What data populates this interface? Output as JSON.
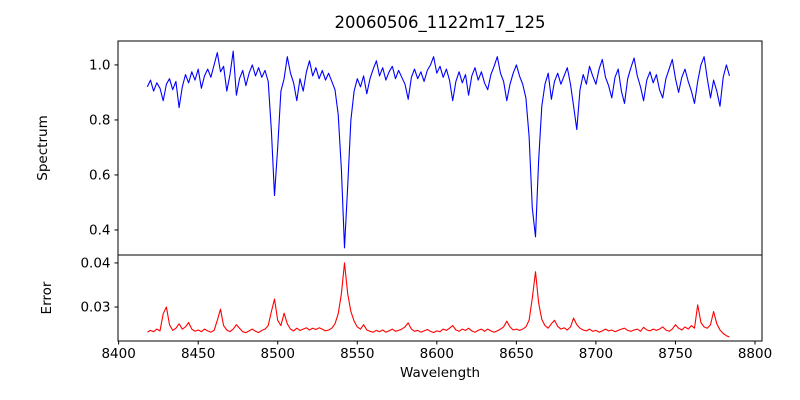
{
  "figure": {
    "title": "20060506_1122m17_125",
    "background_color": "#ffffff",
    "spine_color": "#000000"
  },
  "chart_data": {
    "type": "line",
    "title": "20060506_1122m17_125",
    "xlabel": "Wavelength",
    "legend": "none",
    "grid": false,
    "layout": "two stacked panels sharing x-axis, spectrum on top, error below",
    "xlim": [
      8399.6,
      8804.4
    ],
    "xticks": [
      8400,
      8450,
      8500,
      8550,
      8600,
      8650,
      8700,
      8750,
      8800
    ],
    "xtick_labels": [
      "8400",
      "8450",
      "8500",
      "8550",
      "8600",
      "8650",
      "8700",
      "8750",
      "8800"
    ],
    "panels": [
      {
        "name": "spectrum",
        "ylabel": "Spectrum",
        "color": "#0000ff",
        "ylim": [
          0.309,
          1.087
        ],
        "yticks": [
          0.4,
          0.6,
          0.8,
          1.0
        ],
        "ytick_labels": [
          "0.4",
          "0.6",
          "0.8",
          "1.0"
        ],
        "features": "noisy stellar continuum near 0.95-1.0 with Ca II triplet absorption lines at 8498 (depth 0.52), 8542 (depth 0.34), 8662 (depth 0.38) and weaker line at 8688 (0.77)",
        "x_start": 8418,
        "x_step": 2,
        "values": [
          0.92,
          0.945,
          0.905,
          0.935,
          0.915,
          0.87,
          0.93,
          0.95,
          0.91,
          0.94,
          0.845,
          0.92,
          0.965,
          0.935,
          0.975,
          0.945,
          0.985,
          0.915,
          0.96,
          0.985,
          0.955,
          1.0,
          1.045,
          0.975,
          0.995,
          0.905,
          0.965,
          1.05,
          0.89,
          0.95,
          0.98,
          0.925,
          0.97,
          1.0,
          0.96,
          0.99,
          0.955,
          0.98,
          0.94,
          0.76,
          0.525,
          0.7,
          0.905,
          0.95,
          1.03,
          0.97,
          0.935,
          0.87,
          0.95,
          0.905,
          0.975,
          1.015,
          0.96,
          0.99,
          0.95,
          0.98,
          0.945,
          0.97,
          0.94,
          0.91,
          0.82,
          0.62,
          0.335,
          0.56,
          0.8,
          0.905,
          0.95,
          0.92,
          0.96,
          0.895,
          0.95,
          0.985,
          1.015,
          0.96,
          0.99,
          0.945,
          0.975,
          0.995,
          0.95,
          0.98,
          0.955,
          0.93,
          0.875,
          0.955,
          0.985,
          0.95,
          0.975,
          0.94,
          0.98,
          1.0,
          1.03,
          0.97,
          0.995,
          0.955,
          0.985,
          0.945,
          0.87,
          0.94,
          0.975,
          0.935,
          0.965,
          0.89,
          0.96,
          0.99,
          0.945,
          0.975,
          0.935,
          0.91,
          0.965,
          0.995,
          1.03,
          0.97,
          0.94,
          0.87,
          0.93,
          0.97,
          1.0,
          0.96,
          0.93,
          0.88,
          0.74,
          0.48,
          0.375,
          0.65,
          0.85,
          0.93,
          0.97,
          0.875,
          0.94,
          0.97,
          0.93,
          0.96,
          0.99,
          0.93,
          0.85,
          0.765,
          0.91,
          0.965,
          0.93,
          0.995,
          0.96,
          0.93,
          0.985,
          1.02,
          0.955,
          0.925,
          0.88,
          0.955,
          0.985,
          0.905,
          0.86,
          0.95,
          0.99,
          1.025,
          0.96,
          0.92,
          0.87,
          0.945,
          0.975,
          0.935,
          0.965,
          0.91,
          0.88,
          0.95,
          0.985,
          1.02,
          0.95,
          0.9,
          0.955,
          0.985,
          0.94,
          0.905,
          0.86,
          0.94,
          1.0,
          1.03,
          0.95,
          0.88,
          0.945,
          0.905,
          0.85,
          0.955,
          1.0,
          0.96
        ]
      },
      {
        "name": "error",
        "ylabel": "Error",
        "color": "#ff0000",
        "ylim": [
          0.0223,
          0.0418
        ],
        "yticks": [
          0.03,
          0.04
        ],
        "ytick_labels": [
          "0.03",
          "0.04"
        ],
        "features": "flat noise floor near 0.0245 with peaks at absorption-line positions: 8430 (0.030), 8464 (0.0295), 8498 (0.032), 8542 (0.040), 8662 (0.038), 8764 (0.0305)",
        "x_start": 8418,
        "x_step": 2,
        "values": [
          0.0243,
          0.0247,
          0.0244,
          0.025,
          0.0246,
          0.0285,
          0.03,
          0.026,
          0.0247,
          0.0252,
          0.0262,
          0.025,
          0.0255,
          0.0265,
          0.025,
          0.0245,
          0.0248,
          0.0244,
          0.025,
          0.0246,
          0.0243,
          0.0247,
          0.027,
          0.0295,
          0.0258,
          0.0248,
          0.0244,
          0.025,
          0.026,
          0.0252,
          0.0244,
          0.0242,
          0.0246,
          0.025,
          0.0245,
          0.0242,
          0.0247,
          0.025,
          0.0258,
          0.029,
          0.0318,
          0.027,
          0.0258,
          0.0286,
          0.0262,
          0.025,
          0.0246,
          0.0252,
          0.0247,
          0.025,
          0.0253,
          0.0248,
          0.0252,
          0.0249,
          0.0253,
          0.025,
          0.0246,
          0.0248,
          0.0252,
          0.0262,
          0.0285,
          0.033,
          0.04,
          0.033,
          0.029,
          0.0268,
          0.0255,
          0.025,
          0.026,
          0.0248,
          0.0245,
          0.0243,
          0.0247,
          0.0244,
          0.0248,
          0.0243,
          0.0246,
          0.025,
          0.0245,
          0.0247,
          0.025,
          0.0255,
          0.0264,
          0.025,
          0.0245,
          0.0247,
          0.0243,
          0.0246,
          0.0249,
          0.0245,
          0.0242,
          0.0246,
          0.0244,
          0.025,
          0.0247,
          0.0252,
          0.0258,
          0.0248,
          0.0245,
          0.025,
          0.0247,
          0.0252,
          0.0246,
          0.0243,
          0.0247,
          0.025,
          0.0245,
          0.025,
          0.0246,
          0.0243,
          0.0246,
          0.025,
          0.0255,
          0.0268,
          0.0255,
          0.0248,
          0.025,
          0.0247,
          0.025,
          0.0255,
          0.027,
          0.032,
          0.038,
          0.031,
          0.0272,
          0.0258,
          0.0252,
          0.0262,
          0.027,
          0.0256,
          0.025,
          0.0253,
          0.0248,
          0.0255,
          0.0275,
          0.026,
          0.0252,
          0.0248,
          0.0246,
          0.025,
          0.0245,
          0.0247,
          0.0243,
          0.0246,
          0.025,
          0.0246,
          0.0248,
          0.0244,
          0.0247,
          0.025,
          0.0252,
          0.0247,
          0.0245,
          0.0248,
          0.025,
          0.0245,
          0.0254,
          0.0248,
          0.0246,
          0.025,
          0.0247,
          0.025,
          0.0255,
          0.0248,
          0.0245,
          0.025,
          0.026,
          0.0252,
          0.0248,
          0.0255,
          0.025,
          0.0258,
          0.0252,
          0.0305,
          0.0265,
          0.0255,
          0.0252,
          0.026,
          0.029,
          0.0262,
          0.0248,
          0.024,
          0.0235,
          0.0232
        ]
      }
    ]
  }
}
